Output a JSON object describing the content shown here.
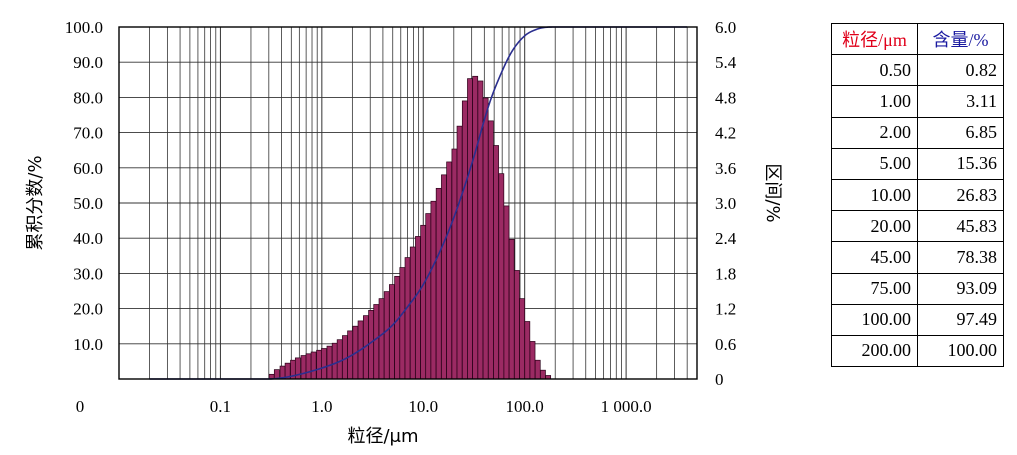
{
  "colors": {
    "bar_fill": "#9b2a63",
    "bar_stroke": "#2a0018",
    "curve": "#2b2f8f",
    "grid": "#333333",
    "table_header_size": "#e0001a",
    "table_header_content": "#1a1aa0"
  },
  "chart_data": {
    "type": "bar",
    "xlabel": "粒径/μm",
    "ylabel_left": "累积分数/%",
    "ylabel_right": "区间/%",
    "x_scale": "log",
    "x_tick_labels": [
      "0",
      "0.1",
      "1.0",
      "10.0",
      "100.0",
      "1 000.0"
    ],
    "y_left_range": [
      0,
      100
    ],
    "y_left_tick_labels": [
      "10.0",
      "20.0",
      "30.0",
      "40.0",
      "50.0",
      "60.0",
      "70.0",
      "80.0",
      "90.0",
      "100.0"
    ],
    "y_right_range": [
      0,
      6.0
    ],
    "y_right_tick_labels": [
      "0",
      "0.6",
      "1.2",
      "1.8",
      "2.4",
      "3.0",
      "3.6",
      "4.2",
      "4.8",
      "5.4",
      "6.0"
    ],
    "grid": true,
    "series": [
      {
        "kind": "bar",
        "axis": "right",
        "x": [
          0.32,
          0.36,
          0.41,
          0.46,
          0.52,
          0.58,
          0.66,
          0.74,
          0.83,
          0.94,
          1.05,
          1.19,
          1.34,
          1.5,
          1.69,
          1.9,
          2.14,
          2.41,
          2.72,
          3.06,
          3.44,
          3.88,
          4.36,
          4.91,
          5.53,
          6.22,
          7.0,
          7.88,
          8.87,
          9.98,
          11.2,
          12.6,
          14.2,
          16.0,
          18.0,
          20.3,
          22.8,
          25.7,
          28.9,
          32.5,
          36.6,
          41.2,
          46.4,
          52.2,
          58.8,
          66.1,
          74.4,
          83.8,
          94.3,
          106.1,
          119.4,
          134.4,
          151.3,
          170.3
        ],
        "values": [
          0.08,
          0.16,
          0.22,
          0.27,
          0.32,
          0.36,
          0.4,
          0.43,
          0.46,
          0.49,
          0.52,
          0.56,
          0.61,
          0.67,
          0.74,
          0.82,
          0.9,
          0.99,
          1.08,
          1.17,
          1.27,
          1.37,
          1.49,
          1.61,
          1.75,
          1.9,
          2.07,
          2.25,
          2.43,
          2.62,
          2.82,
          3.03,
          3.25,
          3.48,
          3.7,
          3.92,
          4.31,
          4.74,
          5.12,
          5.16,
          5.08,
          4.79,
          4.4,
          3.98,
          3.5,
          2.95,
          2.38,
          1.85,
          1.37,
          0.98,
          0.64,
          0.32,
          0.15,
          0.06
        ]
      },
      {
        "kind": "line",
        "axis": "left",
        "x": [
          0.02,
          0.29,
          0.4,
          0.6,
          1.0,
          1.5,
          2.0,
          3.0,
          5.0,
          7.0,
          10.0,
          15.0,
          20.0,
          30.0,
          45.0,
          60.0,
          75.0,
          100.0,
          130.0,
          160.0,
          200.0,
          4000.0
        ],
        "values": [
          0,
          0,
          0.3,
          1.3,
          3.11,
          5.0,
          6.85,
          10.2,
          15.36,
          20.5,
          26.83,
          37.0,
          45.83,
          61.0,
          78.38,
          87.5,
          93.09,
          97.49,
          99.3,
          99.9,
          100,
          100
        ]
      }
    ]
  },
  "table": {
    "header": [
      "粒径/μm",
      "含量/%"
    ],
    "rows": [
      [
        "0.50",
        "0.82"
      ],
      [
        "1.00",
        "3.11"
      ],
      [
        "2.00",
        "6.85"
      ],
      [
        "5.00",
        "15.36"
      ],
      [
        "10.00",
        "26.83"
      ],
      [
        "20.00",
        "45.83"
      ],
      [
        "45.00",
        "78.38"
      ],
      [
        "75.00",
        "93.09"
      ],
      [
        "100.00",
        "97.49"
      ],
      [
        "200.00",
        "100.00"
      ]
    ]
  }
}
